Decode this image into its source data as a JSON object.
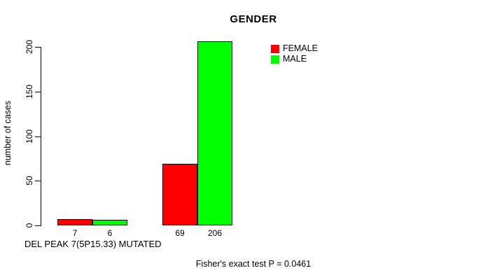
{
  "chart_data": {
    "type": "bar",
    "title": "GENDER",
    "ylabel": "number of cases",
    "xlabel": "DEL PEAK  7(5P15.33) MUTATED",
    "annotation": "Fisher's exact test P = 0.0461",
    "categories": [
      "",
      ""
    ],
    "series": [
      {
        "name": "FEMALE",
        "color": "#ff0000",
        "values": [
          7,
          69
        ]
      },
      {
        "name": "MALE",
        "color": "#00ff00",
        "values": [
          6,
          206
        ]
      }
    ],
    "bar_value_labels": [
      [
        "7",
        "6"
      ],
      [
        "69",
        "206"
      ]
    ],
    "yticks": [
      0,
      50,
      100,
      150,
      200
    ],
    "ylim": [
      0,
      200
    ],
    "grid": false,
    "legend_position": "top-right",
    "bar_border_color": "#000000"
  }
}
